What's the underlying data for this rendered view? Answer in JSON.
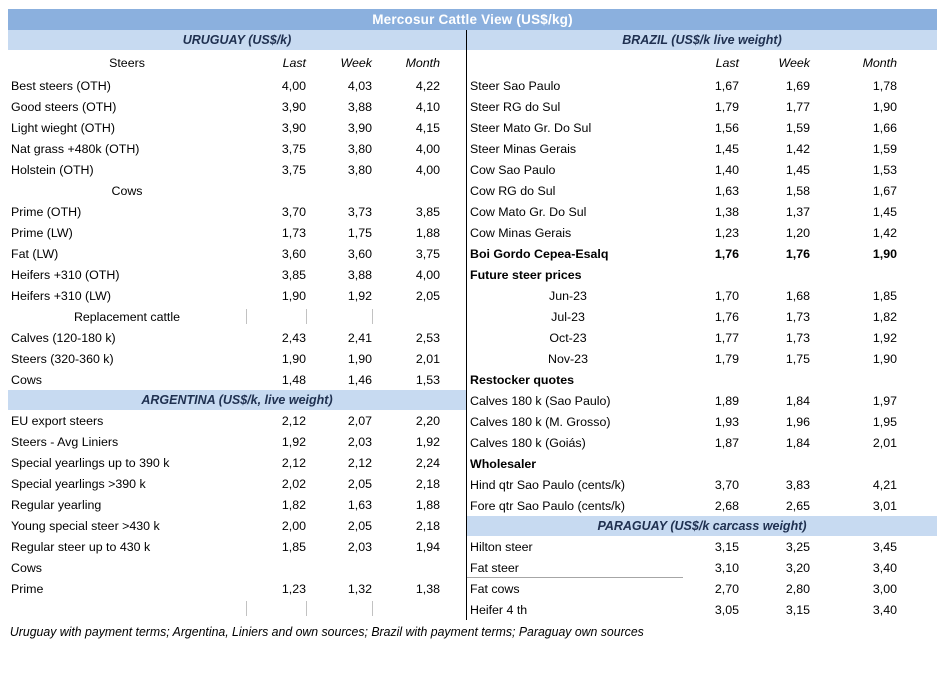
{
  "title": "Mercosur Cattle View (US$/kg)",
  "footer": "Uruguay with payment terms; Argentina, Liniers and own sources; Brazil with payment terms; Paraguay own sources",
  "columns": [
    "Last",
    "Week",
    "Month"
  ],
  "colors": {
    "title_bar_bg": "#8BB0DE",
    "title_text": "#FFFFFF",
    "section_header_bg": "#C7DAF1",
    "section_header_text": "#1F3050",
    "divider": "#000000"
  },
  "left_panel": {
    "section_header": "URUGUAY (US$/k)",
    "col_label": "Steers",
    "rows": [
      {
        "style": "data",
        "label": "Best steers (OTH)",
        "values": [
          "4,00",
          "4,03",
          "4,22"
        ]
      },
      {
        "style": "data",
        "label": "Good steers (OTH)",
        "values": [
          "3,90",
          "3,88",
          "4,10"
        ]
      },
      {
        "style": "data",
        "label": "Light wieght (OTH)",
        "values": [
          "3,90",
          "3,90",
          "4,15"
        ]
      },
      {
        "style": "data",
        "label": "Nat grass +480k (OTH)",
        "values": [
          "3,75",
          "3,80",
          "4,00"
        ]
      },
      {
        "style": "data",
        "label": "Holstein (OTH)",
        "values": [
          "3,75",
          "3,80",
          "4,00"
        ]
      },
      {
        "style": "center",
        "label": "Cows",
        "values": [
          "",
          "",
          ""
        ]
      },
      {
        "style": "data",
        "label": "Prime (OTH)",
        "values": [
          "3,70",
          "3,73",
          "3,85"
        ]
      },
      {
        "style": "data",
        "label": "Prime (LW)",
        "values": [
          "1,73",
          "1,75",
          "1,88"
        ]
      },
      {
        "style": "data",
        "label": "Fat (LW)",
        "values": [
          "3,60",
          "3,60",
          "3,75"
        ]
      },
      {
        "style": "data",
        "label": "Heifers +310 (OTH)",
        "values": [
          "3,85",
          "3,88",
          "4,00"
        ]
      },
      {
        "style": "data",
        "label": "Heifers +310 (LW)",
        "values": [
          "1,90",
          "1,92",
          "2,05"
        ]
      },
      {
        "style": "center",
        "label": "Replacement cattle",
        "values": [
          "",
          "",
          ""
        ],
        "ticks": true
      },
      {
        "style": "data",
        "label": "Calves (120-180 k)",
        "values": [
          "2,43",
          "2,41",
          "2,53"
        ]
      },
      {
        "style": "data",
        "label": "Steers (320-360 k)",
        "values": [
          "1,90",
          "1,90",
          "2,01"
        ]
      },
      {
        "style": "data",
        "label": "Cows",
        "values": [
          "1,48",
          "1,46",
          "1,53"
        ]
      },
      {
        "style": "section",
        "label": "ARGENTINA (US$/k, live weight)",
        "values": [
          "",
          "",
          ""
        ]
      },
      {
        "style": "data",
        "label": "EU export steers",
        "values": [
          "2,12",
          "2,07",
          "2,20"
        ]
      },
      {
        "style": "data",
        "label": "Steers - Avg Liniers",
        "values": [
          "1,92",
          "2,03",
          "1,92"
        ]
      },
      {
        "style": "data",
        "label": "Special yearlings up to 390 k",
        "values": [
          "2,12",
          "2,12",
          "2,24"
        ]
      },
      {
        "style": "data",
        "label": "Special yearlings >390 k",
        "values": [
          "2,02",
          "2,05",
          "2,18"
        ]
      },
      {
        "style": "data",
        "label": "Regular yearling",
        "values": [
          "1,82",
          "1,63",
          "1,88"
        ]
      },
      {
        "style": "data",
        "label": "Young special steer >430 k",
        "values": [
          "2,00",
          "2,05",
          "2,18"
        ]
      },
      {
        "style": "data",
        "label": "Regular steer up to 430 k",
        "values": [
          "1,85",
          "2,03",
          "1,94"
        ]
      },
      {
        "style": "data",
        "label": "Cows",
        "values": [
          "",
          "",
          ""
        ]
      },
      {
        "style": "data",
        "label": "Prime",
        "values": [
          "1,23",
          "1,32",
          "1,38"
        ]
      },
      {
        "style": "empty",
        "label": "",
        "values": [
          "",
          "",
          ""
        ],
        "ticks": true
      }
    ]
  },
  "right_panel": {
    "section_header": "BRAZIL  (US$/k live weight)",
    "col_label": "",
    "rows": [
      {
        "style": "data",
        "label": "Steer Sao Paulo",
        "values": [
          "1,67",
          "1,69",
          "1,78"
        ]
      },
      {
        "style": "data",
        "label": "Steer RG do Sul",
        "values": [
          "1,79",
          "1,77",
          "1,90"
        ]
      },
      {
        "style": "data",
        "label": "Steer Mato Gr. Do Sul",
        "values": [
          "1,56",
          "1,59",
          "1,66"
        ]
      },
      {
        "style": "data",
        "label": "Steer Minas Gerais",
        "values": [
          "1,45",
          "1,42",
          "1,59"
        ]
      },
      {
        "style": "data",
        "label": "Cow Sao Paulo",
        "values": [
          "1,40",
          "1,45",
          "1,53"
        ]
      },
      {
        "style": "data",
        "label": "Cow RG do Sul",
        "values": [
          "1,63",
          "1,58",
          "1,67"
        ]
      },
      {
        "style": "data",
        "label": "Cow Mato Gr. Do Sul",
        "values": [
          "1,38",
          "1,37",
          "1,45"
        ]
      },
      {
        "style": "data",
        "label": "Cow Minas Gerais",
        "values": [
          "1,23",
          "1,20",
          "1,42"
        ]
      },
      {
        "style": "bold",
        "label": "Boi Gordo Cepea-Esalq",
        "values": [
          "1,76",
          "1,76",
          "1,90"
        ]
      },
      {
        "style": "bold",
        "label": "Future steer prices",
        "values": [
          "",
          "",
          ""
        ]
      },
      {
        "style": "center",
        "label": "Jun-23",
        "values": [
          "1,70",
          "1,68",
          "1,85"
        ]
      },
      {
        "style": "center",
        "label": "Jul-23",
        "values": [
          "1,76",
          "1,73",
          "1,82"
        ]
      },
      {
        "style": "center",
        "label": "Oct-23",
        "values": [
          "1,77",
          "1,73",
          "1,92"
        ]
      },
      {
        "style": "center",
        "label": "Nov-23",
        "values": [
          "1,79",
          "1,75",
          "1,90"
        ]
      },
      {
        "style": "bold",
        "label": "Restocker quotes",
        "values": [
          "",
          "",
          ""
        ]
      },
      {
        "style": "data",
        "label": "Calves 180 k (Sao Paulo)",
        "values": [
          "1,89",
          "1,84",
          "1,97"
        ]
      },
      {
        "style": "data",
        "label": "Calves 180 k (M. Grosso)",
        "values": [
          "1,93",
          "1,96",
          "1,95"
        ]
      },
      {
        "style": "data",
        "label": "Calves 180 k (Goiás)",
        "values": [
          "1,87",
          "1,84",
          "2,01"
        ]
      },
      {
        "style": "bold",
        "label": "Wholesaler",
        "values": [
          "",
          "",
          ""
        ]
      },
      {
        "style": "data",
        "label": "Hind qtr Sao Paulo (cents/k)",
        "values": [
          "3,70",
          "3,83",
          "4,21"
        ]
      },
      {
        "style": "data",
        "label": "Fore qtr Sao Paulo (cents/k)",
        "values": [
          "2,68",
          "2,65",
          "3,01"
        ]
      },
      {
        "style": "section",
        "label": "PARAGUAY  (US$/k carcass weight)",
        "values": [
          "",
          "",
          ""
        ]
      },
      {
        "style": "data",
        "label": "Hilton steer",
        "values": [
          "3,15",
          "3,25",
          "3,45"
        ]
      },
      {
        "style": "data",
        "label": "Fat steer",
        "values": [
          "3,10",
          "3,20",
          "3,40"
        ],
        "underline": true
      },
      {
        "style": "data",
        "label": "Fat cows",
        "values": [
          "2,70",
          "2,80",
          "3,00"
        ]
      },
      {
        "style": "data",
        "label": "Heifer 4 th",
        "values": [
          "3,05",
          "3,15",
          "3,40"
        ]
      }
    ]
  }
}
